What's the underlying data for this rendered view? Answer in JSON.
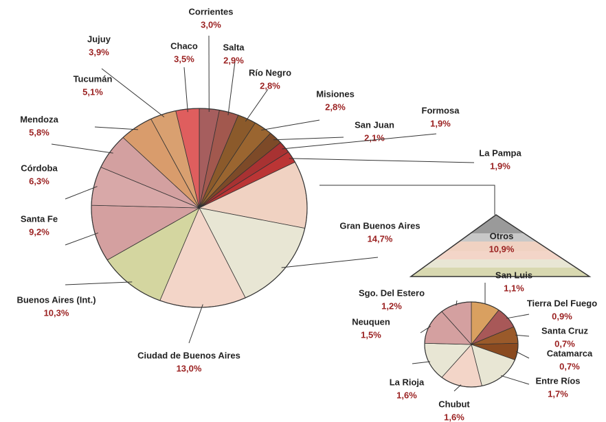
{
  "chart_data": [
    {
      "type": "pie",
      "categories": [
        "Corrientes",
        "Salta",
        "Río Negro",
        "Misiones",
        "San Juan",
        "Formosa",
        "La Pampa",
        "Otros",
        "Gran Buenos Aires",
        "Ciudad de Buenos Aires",
        "Buenos Aires (Int.)",
        "Santa Fe",
        "Córdoba",
        "Mendoza",
        "Tucumán",
        "Jujuy",
        "Chaco"
      ],
      "values": [
        3.0,
        2.9,
        2.8,
        2.8,
        2.1,
        1.9,
        1.9,
        10.9,
        14.7,
        13.0,
        10.3,
        9.2,
        6.3,
        5.8,
        5.1,
        3.9,
        3.5
      ],
      "value_labels": [
        "3,0%",
        "2,9%",
        "2,8%",
        "2,8%",
        "2,1%",
        "1,9%",
        "1,9%",
        "10,9%",
        "14,7%",
        "13,0%",
        "10,3%",
        "9,2%",
        "6,3%",
        "5,8%",
        "5,1%",
        "3,9%",
        "3,5%"
      ],
      "colors": [
        "#a65e5e",
        "#a2584e",
        "#8b5a2b",
        "#9a6530",
        "#7d4a28",
        "#a83232",
        "#bb3535",
        "#f0d2c2",
        "#e8e6d4",
        "#f3d5c8",
        "#d4d6a0",
        "#d4a0a0",
        "#d8a8a8",
        "#d3a0a0",
        "#d99c6c",
        "#d9a070",
        "#df5e5e"
      ]
    },
    {
      "type": "pie",
      "categories": [
        "San Luis",
        "Tierra Del Fuego",
        "Santa Cruz",
        "Catamarca",
        "Entre Ríos",
        "Chubut",
        "La Rioja",
        "Neuquen",
        "Sgo. Del Estero"
      ],
      "values": [
        1.1,
        0.9,
        0.7,
        0.7,
        1.7,
        1.6,
        1.6,
        1.5,
        1.2
      ],
      "value_labels": [
        "1,1%",
        "0,9%",
        "0,7%",
        "0,7%",
        "1,7%",
        "1,6%",
        "1,6%",
        "1,5%",
        "1,2%"
      ],
      "colors": [
        "#d9a060",
        "#a85858",
        "#9a5a2a",
        "#8a4a20",
        "#e8e6d4",
        "#f3d5c8",
        "#e8e6d4",
        "#d4a0a0",
        "#d4a0a0"
      ]
    }
  ]
}
